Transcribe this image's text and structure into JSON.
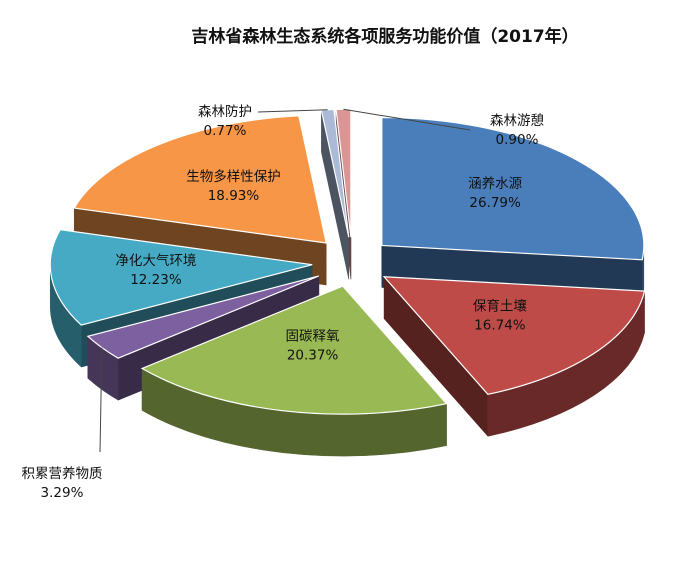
{
  "chart_data": {
    "type": "pie",
    "title": "吉林省森林生态系统各项服务功能价值（2017年）",
    "three_d": true,
    "exploded": true,
    "slices": [
      {
        "name": "涵养水源",
        "value": 26.79,
        "label": "26.79%",
        "color": "#4a7ebb"
      },
      {
        "name": "保育土壤",
        "value": 16.74,
        "label": "16.74%",
        "color": "#be4b48"
      },
      {
        "name": "固碳释氧",
        "value": 20.37,
        "label": "20.37%",
        "color": "#98b954"
      },
      {
        "name": "积累营养物质",
        "value": 3.29,
        "label": "3.29%",
        "color": "#7d60a0"
      },
      {
        "name": "净化大气环境",
        "value": 12.23,
        "label": "12.23%",
        "color": "#46aac5"
      },
      {
        "name": "生物多样性保护",
        "value": 18.93,
        "label": "18.93%",
        "color": "#f79646"
      },
      {
        "name": "森林防护",
        "value": 0.77,
        "label": "0.77%",
        "color": "#aabad7"
      },
      {
        "name": "森林游憩",
        "value": 0.9,
        "label": "0.90%",
        "color": "#d99694"
      }
    ]
  }
}
